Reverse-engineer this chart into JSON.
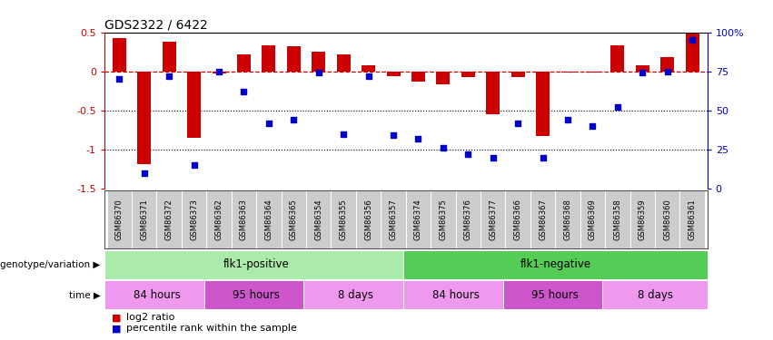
{
  "title": "GDS2322 / 6422",
  "samples": [
    "GSM86370",
    "GSM86371",
    "GSM86372",
    "GSM86373",
    "GSM86362",
    "GSM86363",
    "GSM86364",
    "GSM86365",
    "GSM86354",
    "GSM86355",
    "GSM86356",
    "GSM86357",
    "GSM86374",
    "GSM86375",
    "GSM86376",
    "GSM86377",
    "GSM86366",
    "GSM86367",
    "GSM86368",
    "GSM86369",
    "GSM86358",
    "GSM86359",
    "GSM86360",
    "GSM86361"
  ],
  "log2_ratio": [
    0.43,
    -1.18,
    0.38,
    -0.85,
    -0.03,
    0.22,
    0.33,
    0.32,
    0.25,
    0.22,
    0.08,
    -0.06,
    -0.13,
    -0.17,
    -0.07,
    -0.55,
    -0.07,
    -0.83,
    -0.02,
    -0.01,
    0.33,
    0.08,
    0.18,
    0.48
  ],
  "pct_rank": [
    70,
    10,
    72,
    15,
    75,
    62,
    42,
    44,
    74,
    35,
    72,
    34,
    32,
    26,
    22,
    20,
    42,
    20,
    44,
    40,
    52,
    74,
    75,
    95
  ],
  "bar_color": "#cc0000",
  "dot_color": "#0000cc",
  "ref_line_color": "#cc0000",
  "dotted_line_color": "#000000",
  "ylim_left": [
    -1.5,
    0.5
  ],
  "ylim_right": [
    0,
    100
  ],
  "yticks_left": [
    -1.5,
    -1.0,
    -0.5,
    0.0,
    0.5
  ],
  "ytick_labels_left": [
    "-1.5",
    "-1",
    "-0.5",
    "0",
    "0.5"
  ],
  "yticks_right": [
    0,
    25,
    50,
    75,
    100
  ],
  "ytick_labels_right": [
    "0",
    "25",
    "50",
    "75",
    "100%"
  ],
  "genotype_row": {
    "label": "genotype/variation",
    "groups": [
      {
        "name": "flk1-positive",
        "start": 0,
        "end": 12,
        "color": "#aaeaaa"
      },
      {
        "name": "flk1-negative",
        "start": 12,
        "end": 24,
        "color": "#55cc55"
      }
    ]
  },
  "time_row": {
    "label": "time",
    "groups": [
      {
        "name": "84 hours",
        "start": 0,
        "end": 4,
        "color": "#ee99ee"
      },
      {
        "name": "95 hours",
        "start": 4,
        "end": 8,
        "color": "#cc55cc"
      },
      {
        "name": "8 days",
        "start": 8,
        "end": 12,
        "color": "#ee99ee"
      },
      {
        "name": "84 hours",
        "start": 12,
        "end": 16,
        "color": "#ee99ee"
      },
      {
        "name": "95 hours",
        "start": 16,
        "end": 20,
        "color": "#cc55cc"
      },
      {
        "name": "8 days",
        "start": 20,
        "end": 24,
        "color": "#ee99ee"
      }
    ]
  },
  "legend_items": [
    {
      "label": "log2 ratio",
      "color": "#cc0000"
    },
    {
      "label": "percentile rank within the sample",
      "color": "#0000cc"
    }
  ],
  "bar_width": 0.55,
  "tick_bg_color": "#cccccc"
}
